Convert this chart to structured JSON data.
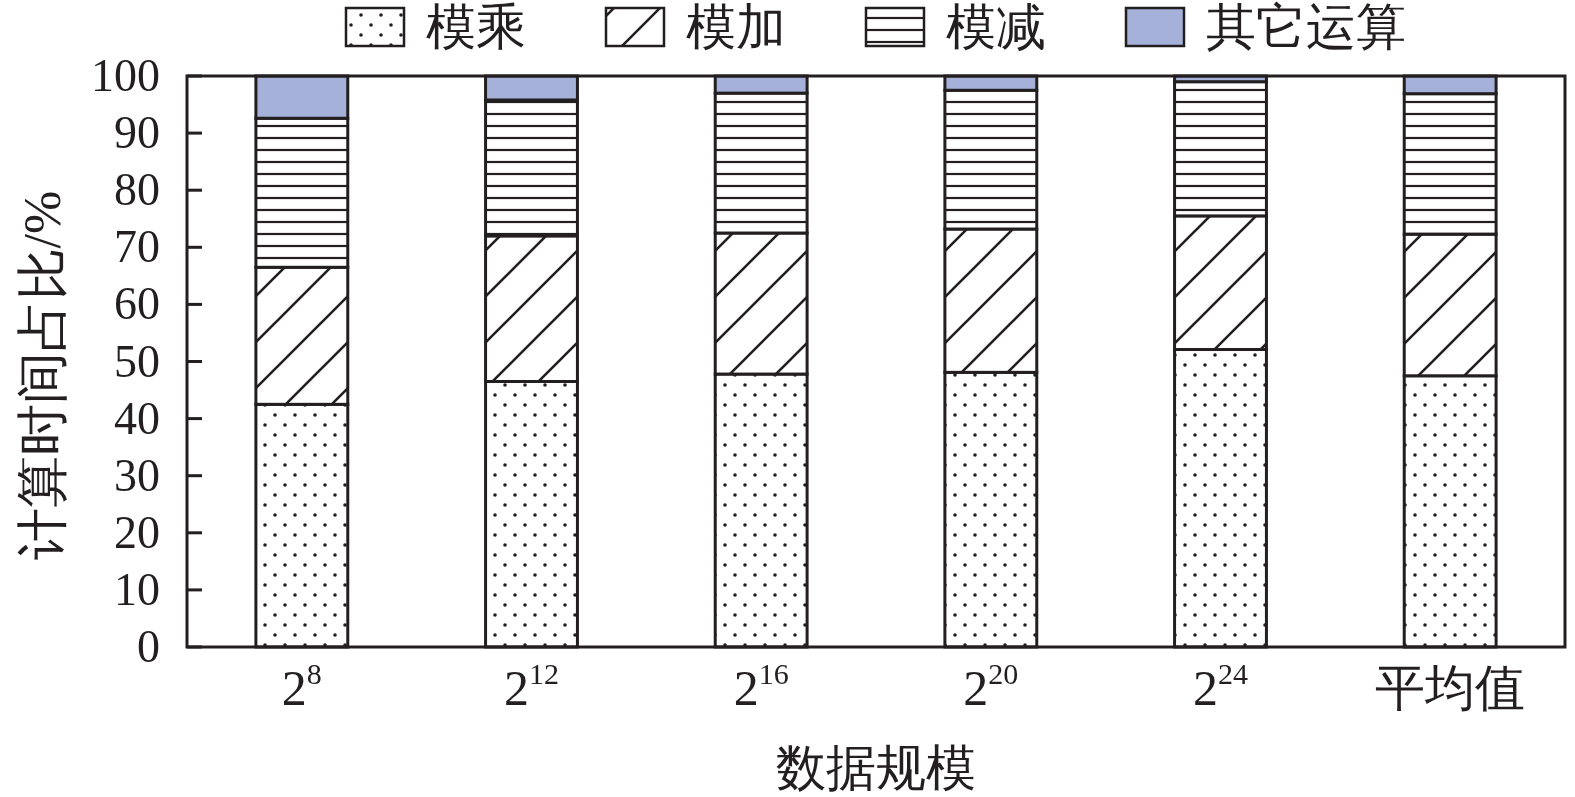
{
  "chart_data": {
    "type": "bar",
    "stacked": true,
    "categories": [
      "2$^{8}$",
      "2$^{12}$",
      "2$^{16}$",
      "2$^{20}$",
      "2$^{24}$",
      "平均值"
    ],
    "series": [
      {
        "name": "模乘",
        "color": "#231f20",
        "values": [
          42.5,
          46.5,
          47.8,
          48.1,
          52.1,
          47.5
        ]
      },
      {
        "name": "模加",
        "color": "#231f20",
        "values": [
          24.0,
          25.5,
          24.7,
          25.1,
          23.4,
          24.8
        ]
      },
      {
        "name": "模减",
        "color": "#231f20",
        "values": [
          26.1,
          23.8,
          24.5,
          24.3,
          23.5,
          24.6
        ]
      },
      {
        "name": "其它运算",
        "color": "#a5b1d8",
        "values": [
          7.4,
          4.2,
          3.0,
          2.5,
          1.0,
          3.1
        ]
      }
    ],
    "xlabel": "数据规模",
    "ylabel": "计算时间占比/%",
    "ylim": [
      0,
      100
    ],
    "yticks": [
      0,
      10,
      20,
      30,
      40,
      50,
      60,
      70,
      80,
      90,
      100
    ],
    "legend": "top"
  }
}
